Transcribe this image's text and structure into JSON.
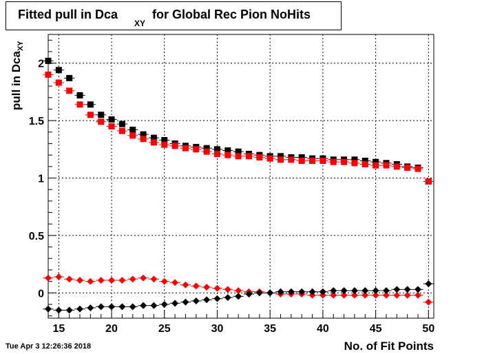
{
  "title": {
    "main": "Fitted pull in Dca",
    "subscript": "XY",
    "rest": "for Global Rec Pion NoHits"
  },
  "timestamp": "Tue Apr  3 12:26:36 2018",
  "chart_data": {
    "type": "scatter",
    "title": "Fitted pull in Dca_XY for Global Rec Pion NoHits",
    "xlabel": "No. of Fit Points",
    "ylabel": "pull in Dca",
    "ylabel_subscript": "XY",
    "xlim": [
      14,
      50.5
    ],
    "ylim": [
      -0.22,
      2.25
    ],
    "x_ticks": [
      15,
      20,
      25,
      30,
      35,
      40,
      45,
      50
    ],
    "y_ticks": [
      0,
      0.5,
      1,
      1.5,
      2
    ],
    "y_tick_labels": [
      "0",
      "0.5",
      "1",
      "1.5",
      "2"
    ],
    "grid": true,
    "legend": "none",
    "x": [
      14,
      15,
      16,
      17,
      18,
      19,
      20,
      21,
      22,
      23,
      24,
      25,
      26,
      27,
      28,
      29,
      30,
      31,
      32,
      33,
      34,
      35,
      36,
      37,
      38,
      39,
      40,
      41,
      42,
      43,
      44,
      45,
      46,
      47,
      48,
      49,
      50
    ],
    "series": [
      {
        "color": "#000000",
        "marker": "square",
        "values": [
          2.02,
          1.94,
          1.87,
          1.72,
          1.64,
          1.55,
          1.51,
          1.47,
          1.42,
          1.38,
          1.35,
          1.33,
          1.3,
          1.28,
          1.27,
          1.26,
          1.25,
          1.24,
          1.23,
          1.21,
          1.2,
          1.19,
          1.19,
          1.18,
          1.18,
          1.17,
          1.17,
          1.16,
          1.16,
          1.16,
          1.15,
          1.14,
          1.13,
          1.12,
          1.1,
          1.09,
          0.97
        ]
      },
      {
        "color": "#ff0000",
        "marker": "square",
        "values": [
          1.9,
          1.83,
          1.76,
          1.64,
          1.55,
          1.49,
          1.45,
          1.41,
          1.37,
          1.34,
          1.31,
          1.29,
          1.28,
          1.26,
          1.25,
          1.23,
          1.21,
          1.2,
          1.19,
          1.19,
          1.18,
          1.17,
          1.16,
          1.16,
          1.15,
          1.15,
          1.15,
          1.14,
          1.14,
          1.13,
          1.12,
          1.11,
          1.11,
          1.1,
          1.09,
          1.08,
          0.97
        ]
      },
      {
        "color": "#ff0000",
        "marker": "diamond",
        "values": [
          0.13,
          0.14,
          0.12,
          0.11,
          0.1,
          0.11,
          0.11,
          0.11,
          0.12,
          0.13,
          0.12,
          0.1,
          0.09,
          0.07,
          0.06,
          0.05,
          0.04,
          0.03,
          0.02,
          0.01,
          0.01,
          0.0,
          -0.01,
          -0.01,
          -0.01,
          -0.02,
          -0.02,
          -0.02,
          -0.02,
          -0.02,
          -0.02,
          -0.02,
          -0.02,
          -0.02,
          -0.02,
          -0.02,
          -0.08
        ]
      },
      {
        "color": "#000000",
        "marker": "diamond",
        "values": [
          -0.14,
          -0.15,
          -0.15,
          -0.14,
          -0.13,
          -0.12,
          -0.12,
          -0.12,
          -0.12,
          -0.11,
          -0.11,
          -0.1,
          -0.09,
          -0.08,
          -0.07,
          -0.06,
          -0.05,
          -0.04,
          -0.03,
          -0.01,
          0.0,
          0.0,
          0.01,
          0.01,
          0.01,
          0.01,
          0.01,
          0.02,
          0.02,
          0.02,
          0.02,
          0.02,
          0.02,
          0.03,
          0.03,
          0.03,
          0.08
        ]
      }
    ]
  }
}
